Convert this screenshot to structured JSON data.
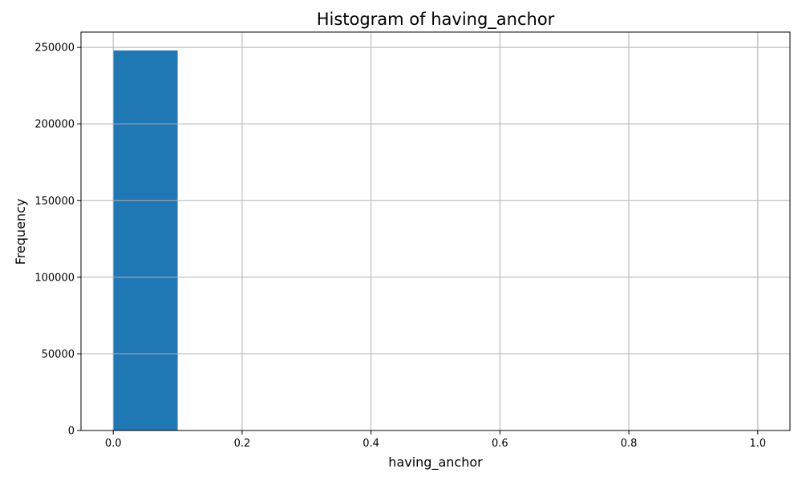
{
  "chart_data": {
    "type": "bar",
    "title": "Histogram of having_anchor",
    "xlabel": "having_anchor",
    "ylabel": "Frequency",
    "bin_edges": [
      0.0,
      0.1,
      0.2,
      0.3,
      0.4,
      0.5,
      0.6,
      0.7,
      0.8,
      0.9,
      1.0
    ],
    "values": [
      248000,
      0,
      0,
      0,
      0,
      0,
      0,
      0,
      0,
      0
    ],
    "xlim": [
      -0.05,
      1.05
    ],
    "ylim": [
      0,
      260000
    ],
    "xticks": [
      0.0,
      0.2,
      0.4,
      0.6,
      0.8,
      1.0
    ],
    "xtick_labels": [
      "0.0",
      "0.2",
      "0.4",
      "0.6",
      "0.8",
      "1.0"
    ],
    "yticks": [
      0,
      50000,
      100000,
      150000,
      200000,
      250000
    ],
    "ytick_labels": [
      "0",
      "50000",
      "100000",
      "150000",
      "200000",
      "250000"
    ],
    "grid": true,
    "bar_color": "#1f77b4",
    "grid_color": "#b0b0b0"
  }
}
